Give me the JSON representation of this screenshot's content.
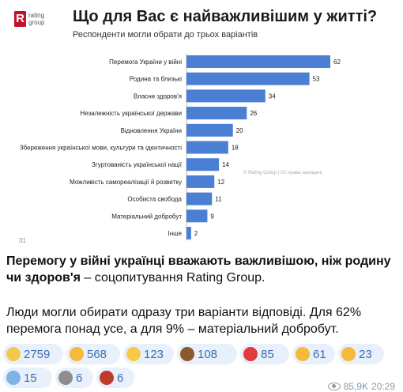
{
  "post": {
    "logo": {
      "mark": "R",
      "line1": "rating",
      "line2": "group"
    },
    "headline_bold": "Перемогу у війні українці вважають важливішою, ніж родину чи здоров'я",
    "headline_rest": " – соцопитування Rating Group.",
    "body": "Люди могли обирати одразу три варіанти відповіді. Для 62% перемога понад усе, а для 9% – матеріальний добробут.",
    "page_number": "31",
    "watermark": "© Rating Group | Усі права захищені",
    "views": "85,9K",
    "time": "20:29"
  },
  "chart_data": {
    "type": "bar",
    "orientation": "horizontal",
    "title": "Що для Вас є найважливішим у житті?",
    "subtitle": "Респонденти могли обрати до трьох варіантів",
    "categories": [
      "Перемога України у війні",
      "Родина та близькі",
      "Власне здоров'я",
      "Незалежність української держави",
      "Відновлення України",
      "Збереження української мови, культури та ідентичності",
      "Згуртованість української нації",
      "Можливість самореалізації й розвитку",
      "Особиста свобода",
      "Матеріальний добробут",
      "Інше"
    ],
    "values": [
      62,
      53,
      34,
      26,
      20,
      18,
      14,
      12,
      11,
      9,
      2
    ],
    "xlim": [
      0,
      62
    ],
    "bar_color": "#4a7fd4",
    "grid": false,
    "legend": "none"
  },
  "reactions": [
    {
      "icon": "clown-face-icon",
      "count": "2759",
      "color": "#f2c94c"
    },
    {
      "icon": "thumbs-up-icon",
      "count": "568",
      "color": "#f5b93b"
    },
    {
      "icon": "grinning-face-icon",
      "count": "123",
      "color": "#f7c948"
    },
    {
      "icon": "poop-icon",
      "count": "108",
      "color": "#8b5a2b"
    },
    {
      "icon": "pill-icon",
      "count": "85",
      "color": "#e23b3b"
    },
    {
      "icon": "thumbs-down-icon",
      "count": "61",
      "color": "#f5b93b"
    },
    {
      "icon": "pointing-hand-icon",
      "count": "23",
      "color": "#f5b93b"
    },
    {
      "icon": "scream-face-icon",
      "count": "15",
      "color": "#7fb3e6"
    },
    {
      "icon": "moai-icon",
      "count": "6",
      "color": "#8d8d8d"
    },
    {
      "icon": "fire-demon-icon",
      "count": "6",
      "color": "#c0392b"
    }
  ]
}
